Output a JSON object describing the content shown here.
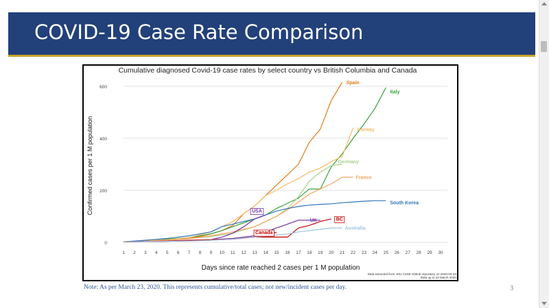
{
  "slide": {
    "title": "COVID-19 Case Rate Comparison",
    "note": "Note: As per March 23, 2020. This represents cumulative/total cases; not new/incident cases per day.",
    "page_number": "3"
  },
  "chart_data": {
    "type": "line",
    "title": "Cumulative diagnosed Covid-19 case rates by select country vs British Columbia and Canada",
    "xlabel": "Days since rate reached 2 cases per 1 M population",
    "ylabel": "Confirmed cases per 1 M population",
    "xlim": [
      1,
      30
    ],
    "ylim": [
      0,
      600
    ],
    "x_ticks": [
      "1",
      "2",
      "3",
      "4",
      "5",
      "6",
      "7",
      "8",
      "9",
      "10",
      "11",
      "12",
      "13",
      "14",
      "15",
      "16",
      "17",
      "18",
      "19",
      "20",
      "21",
      "22",
      "23",
      "24",
      "25",
      "26",
      "27",
      "28",
      "29",
      "30"
    ],
    "y_ticks": [
      "0",
      "200",
      "400",
      "600"
    ],
    "grid": "horizontal",
    "legend": "labels at line ends",
    "source_lines": [
      "Data extracted from JHU CSSE Github repository on 2020-03-23.",
      "Data up to 23 March 2020."
    ],
    "series": [
      {
        "name": "Spain",
        "color": "#e07b1a",
        "boxed": false,
        "x": [
          1,
          2,
          3,
          4,
          5,
          6,
          7,
          8,
          9,
          10,
          11,
          12,
          13,
          14,
          15,
          16,
          17,
          18,
          19,
          20,
          21
        ],
        "y": [
          2,
          4,
          6,
          8,
          10,
          13,
          17,
          22,
          32,
          45,
          65,
          110,
          140,
          180,
          220,
          260,
          300,
          385,
          435,
          545,
          615
        ]
      },
      {
        "name": "Italy",
        "color": "#3aa03a",
        "boxed": false,
        "x": [
          1,
          2,
          3,
          4,
          5,
          6,
          7,
          8,
          9,
          10,
          11,
          12,
          13,
          14,
          15,
          16,
          17,
          18,
          19,
          20,
          21,
          22,
          23,
          24,
          25
        ],
        "y": [
          2,
          3,
          5,
          8,
          12,
          15,
          18,
          25,
          33,
          45,
          60,
          75,
          90,
          105,
          130,
          150,
          170,
          205,
          205,
          290,
          340,
          400,
          455,
          515,
          595
        ]
      },
      {
        "name": "Norway",
        "color": "#f5b96b",
        "boxed": false,
        "x": [
          1,
          3,
          5,
          7,
          9,
          11,
          13,
          14,
          15,
          16,
          17,
          18,
          19,
          20,
          21,
          22
        ],
        "y": [
          2,
          6,
          10,
          18,
          40,
          80,
          140,
          180,
          200,
          225,
          245,
          270,
          285,
          310,
          330,
          440
        ]
      },
      {
        "name": "Germany",
        "color": "#a8d08d",
        "boxed": false,
        "x": [
          1,
          3,
          5,
          7,
          9,
          11,
          13,
          15,
          16,
          17,
          18,
          19,
          20,
          21
        ],
        "y": [
          2,
          5,
          8,
          14,
          22,
          35,
          60,
          100,
          130,
          175,
          235,
          270,
          295,
          300
        ]
      },
      {
        "name": "France",
        "color": "#f8a35c",
        "boxed": false,
        "x": [
          1,
          3,
          5,
          7,
          9,
          11,
          13,
          14,
          15,
          16,
          17,
          18,
          19,
          20,
          21,
          22
        ],
        "y": [
          2,
          5,
          8,
          14,
          25,
          40,
          60,
          80,
          100,
          125,
          155,
          185,
          205,
          225,
          250,
          250
        ]
      },
      {
        "name": "South Korea",
        "color": "#2f74b5",
        "boxed": false,
        "x": [
          1,
          3,
          5,
          7,
          9,
          10,
          11,
          12,
          13,
          14,
          15,
          16,
          17,
          18,
          19,
          20,
          21,
          22,
          23,
          24,
          25
        ],
        "y": [
          2,
          8,
          15,
          25,
          40,
          60,
          70,
          80,
          90,
          105,
          120,
          130,
          138,
          143,
          146,
          148,
          152,
          155,
          158,
          160,
          160
        ]
      },
      {
        "name": "USA",
        "color": "#7030a0",
        "boxed": true,
        "x": [
          1,
          3,
          5,
          7,
          9,
          10,
          11,
          12,
          13,
          14
        ],
        "y": [
          2,
          3,
          4,
          6,
          10,
          20,
          35,
          60,
          90,
          105
        ]
      },
      {
        "name": "UK",
        "color": "#7030a0",
        "boxed": false,
        "x": [
          1,
          3,
          5,
          7,
          9,
          11,
          13,
          14,
          15,
          16,
          17,
          18,
          19
        ],
        "y": [
          2,
          3,
          5,
          7,
          10,
          15,
          25,
          40,
          55,
          70,
          85,
          85,
          85
        ]
      },
      {
        "name": "BC",
        "color": "#c00000",
        "boxed": true,
        "x": [
          1,
          3,
          5,
          7,
          9,
          11,
          13,
          14,
          15,
          16,
          17,
          18,
          19,
          20
        ],
        "y": [
          2,
          3,
          5,
          8,
          10,
          12,
          20,
          20,
          20,
          20,
          55,
          65,
          80,
          90
        ]
      },
      {
        "name": "Canada",
        "color": "#c00000",
        "boxed": true,
        "x": [
          1,
          3,
          5,
          7,
          9,
          11,
          13,
          14,
          15
        ],
        "y": [
          2,
          3,
          4,
          6,
          8,
          12,
          20,
          30,
          38
        ]
      },
      {
        "name": "Australia",
        "color": "#9dc3e6",
        "boxed": false,
        "x": [
          1,
          3,
          5,
          7,
          9,
          11,
          13,
          15,
          16,
          17,
          18,
          19,
          20,
          21
        ],
        "y": [
          2,
          3,
          4,
          5,
          8,
          12,
          20,
          28,
          32,
          40,
          45,
          50,
          55,
          55
        ]
      }
    ]
  }
}
